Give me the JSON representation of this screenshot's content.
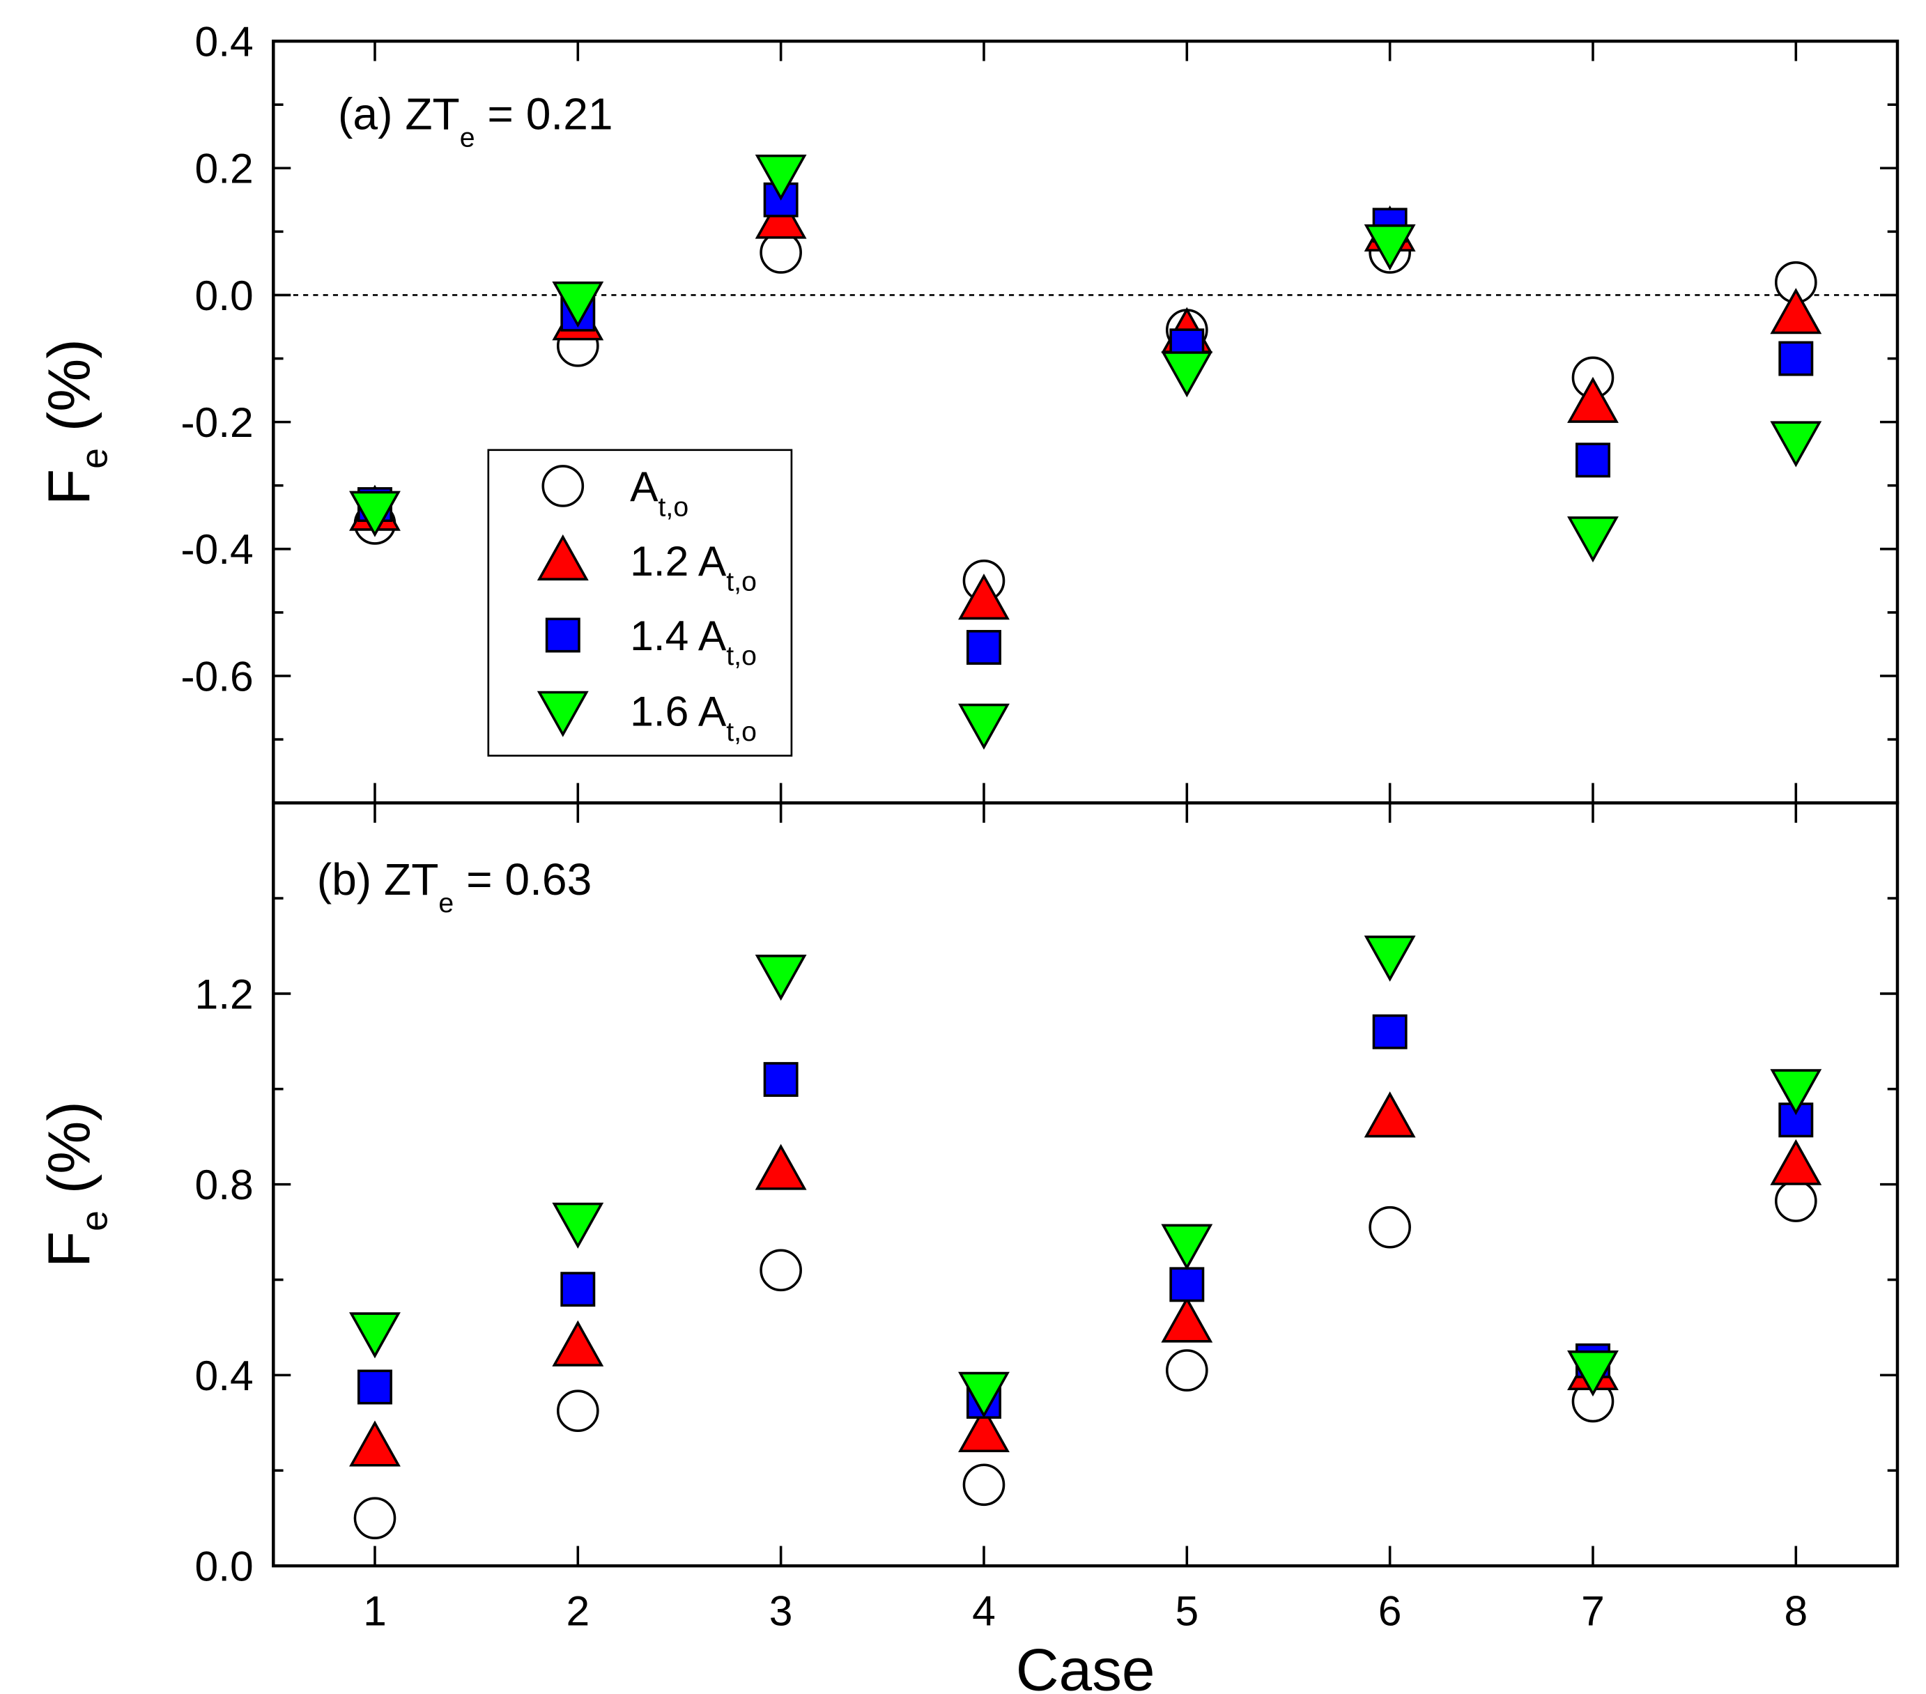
{
  "chart_data": [
    {
      "type": "scatter",
      "panel_label": "(a)",
      "annotation": {
        "prefix": "(a) ZT",
        "sub": "e",
        "suffix": " = 0.21"
      },
      "ylabel": {
        "main": "F",
        "sub": "e",
        "unit": " (%)"
      },
      "ylim": [
        -0.8,
        0.4
      ],
      "yticks": [
        0.4,
        0.2,
        0.0,
        -0.2,
        -0.4,
        -0.6
      ],
      "ytick_labels": [
        "0.4",
        "0.2",
        "0.0",
        "-0.2",
        "-0.4",
        "-0.6"
      ],
      "yminor_step": 0.1,
      "reference_line": 0.0,
      "x": [
        1,
        2,
        3,
        4,
        5,
        6,
        7,
        8
      ],
      "series": [
        {
          "name": "A_t,o",
          "label_main": "A",
          "label_sub": "t,o",
          "marker": "circle",
          "color": "#ffffff",
          "values": [
            -0.36,
            -0.08,
            0.067,
            -0.45,
            -0.055,
            0.067,
            -0.13,
            0.02
          ]
        },
        {
          "name": "1.2 A_t,o",
          "label_main": "1.2 A",
          "label_sub": "t,o",
          "marker": "triangle-up",
          "color": "#ff0000",
          "values": [
            -0.34,
            -0.04,
            0.12,
            -0.48,
            -0.06,
            0.1,
            -0.17,
            -0.03
          ]
        },
        {
          "name": "1.4 A_t,o",
          "label_main": "1.4 A",
          "label_sub": "t,o",
          "marker": "square",
          "color": "#0000ff",
          "values": [
            -0.33,
            -0.03,
            0.15,
            -0.555,
            -0.08,
            0.11,
            -0.26,
            -0.1
          ]
        },
        {
          "name": "1.6 A_t,o",
          "label_main": "1.6 A",
          "label_sub": "t,o",
          "marker": "triangle-down",
          "color": "#00ff00",
          "values": [
            -0.34,
            -0.01,
            0.19,
            -0.675,
            -0.12,
            0.08,
            -0.38,
            -0.23
          ]
        }
      ],
      "legend": "center-left"
    },
    {
      "type": "scatter",
      "panel_label": "(b)",
      "annotation": {
        "prefix": "(b)  ZT",
        "sub": "e",
        "suffix": " = 0.63"
      },
      "ylabel": {
        "main": "F",
        "sub": "e",
        "unit": " (%)"
      },
      "xlabel": "Case",
      "xlim": [
        0.5,
        8.5
      ],
      "xtick_labels": [
        "1",
        "2",
        "3",
        "4",
        "5",
        "6",
        "7",
        "8"
      ],
      "ylim": [
        0.0,
        1.6
      ],
      "yticks": [
        0.0,
        0.4,
        0.8,
        1.2
      ],
      "ytick_labels": [
        "0.0",
        "0.4",
        "0.8",
        "1.2"
      ],
      "yminor_step": 0.2,
      "x": [
        1,
        2,
        3,
        4,
        5,
        6,
        7,
        8
      ],
      "series": [
        {
          "name": "A_t,o",
          "marker": "circle",
          "color": "#ffffff",
          "values": [
            0.1,
            0.325,
            0.62,
            0.17,
            0.41,
            0.71,
            0.345,
            0.765
          ]
        },
        {
          "name": "1.2 A_t,o",
          "marker": "triangle-up",
          "color": "#ff0000",
          "values": [
            0.25,
            0.46,
            0.83,
            0.28,
            0.51,
            0.94,
            0.41,
            0.84
          ]
        },
        {
          "name": "1.4 A_t,o",
          "marker": "square",
          "color": "#0000ff",
          "values": [
            0.375,
            0.58,
            1.02,
            0.345,
            0.59,
            1.12,
            0.43,
            0.935
          ]
        },
        {
          "name": "1.6 A_t,o",
          "marker": "triangle-down",
          "color": "#00ff00",
          "values": [
            0.49,
            0.72,
            1.24,
            0.365,
            0.675,
            1.28,
            0.41,
            1.0
          ]
        }
      ]
    }
  ]
}
